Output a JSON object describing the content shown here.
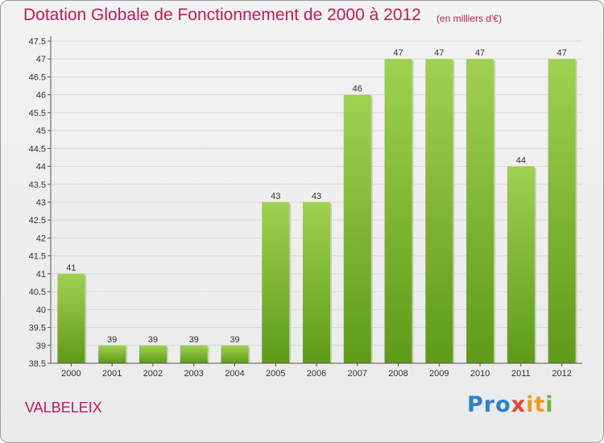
{
  "header": {
    "title": "Dotation Globale de Fonctionnement de 2000 à 2012",
    "unit": "(en milliers d'€)"
  },
  "footer": {
    "place": "VALBELEIX",
    "logo_parts": [
      "Pro",
      "x",
      "it",
      "i"
    ]
  },
  "colors": {
    "title": "#c2185b",
    "bar_light": "#9fd24e",
    "bar_dark": "#5e9b17",
    "grid": "#d7d7d7",
    "axis": "#555555"
  },
  "chart_data": {
    "type": "bar",
    "title": "Dotation Globale de Fonctionnement de 2000 à 2012",
    "subtitle": "(en milliers d'€)",
    "categories": [
      "2000",
      "2001",
      "2002",
      "2003",
      "2004",
      "2005",
      "2006",
      "2007",
      "2008",
      "2009",
      "2010",
      "2011",
      "2012"
    ],
    "values": [
      41,
      39,
      39,
      39,
      39,
      43,
      43,
      46,
      47,
      47,
      47,
      44,
      47
    ],
    "ylim": [
      38.5,
      47.5
    ],
    "yticks": [
      "38.5",
      "39",
      "39.5",
      "40",
      "40.5",
      "41",
      "41.5",
      "42",
      "42.5",
      "43",
      "43.5",
      "44",
      "44.5",
      "45",
      "45.5",
      "46",
      "46.5",
      "47",
      "47.5"
    ],
    "grid": true,
    "data_labels": true
  }
}
